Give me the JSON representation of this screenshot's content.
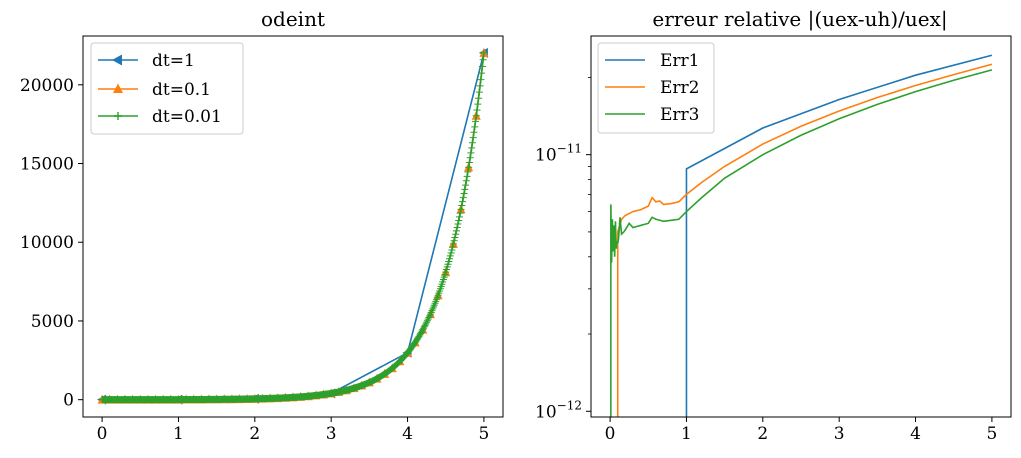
{
  "chart_data": [
    {
      "type": "line",
      "title": "odeint",
      "xlabel": "",
      "ylabel": "",
      "xlim": [
        -0.25,
        5.25
      ],
      "ylim": [
        -1100,
        23100
      ],
      "xticks": [
        0,
        1,
        2,
        3,
        4,
        5
      ],
      "xtick_labels": [
        "0",
        "1",
        "2",
        "3",
        "4",
        "5"
      ],
      "yticks": [
        0,
        5000,
        10000,
        15000,
        20000
      ],
      "ytick_labels": [
        "0",
        "5000",
        "10000",
        "15000",
        "20000"
      ],
      "grid": false,
      "legend_position": "top-left",
      "series": [
        {
          "name": "dt=1",
          "color": "#1f77b4",
          "marker": "triangle-left",
          "step": 1,
          "x": [
            0,
            1,
            2,
            3,
            4,
            5
          ],
          "y": [
            1,
            7.4,
            54.6,
            403.4,
            2981,
            22026
          ]
        },
        {
          "name": "dt=0.1",
          "color": "#ff7f0e",
          "marker": "triangle-up",
          "step": 0.1,
          "x": [
            0,
            5
          ],
          "y": [
            1,
            22026
          ],
          "function": "exp(2x)",
          "points": 51
        },
        {
          "name": "dt=0.01",
          "color": "#2ca02c",
          "marker": "plus",
          "step": 0.01,
          "x": [
            0,
            5
          ],
          "y": [
            1,
            22026
          ],
          "function": "exp(2x)",
          "points": 501
        }
      ]
    },
    {
      "type": "line",
      "title": "erreur relative |(uex-uh)/uex|",
      "xlabel": "",
      "ylabel": "",
      "yscale": "log",
      "xlim": [
        -0.25,
        5.25
      ],
      "ylim": [
        9.5e-13,
        2.9e-11
      ],
      "xticks": [
        0,
        1,
        2,
        3,
        4,
        5
      ],
      "xtick_labels": [
        "0",
        "1",
        "2",
        "3",
        "4",
        "5"
      ],
      "yticks": [
        1e-12,
        1e-11
      ],
      "ytick_labels": [
        {
          "base": "10",
          "exp": "−12"
        },
        {
          "base": "10",
          "exp": "−11"
        }
      ],
      "grid": false,
      "legend_position": "top-left",
      "series": [
        {
          "name": "Err1",
          "color": "#1f77b4",
          "x": [
            0,
            1,
            1,
            2,
            3,
            4,
            5
          ],
          "y": [
            0,
            0,
            8.8e-12,
            1.27e-11,
            1.64e-11,
            2.04e-11,
            2.44e-11
          ]
        },
        {
          "name": "Err2",
          "color": "#ff7f0e",
          "x": [
            0,
            0.1,
            0.1,
            0.15,
            0.2,
            0.3,
            0.4,
            0.5,
            0.55,
            0.6,
            0.65,
            0.7,
            0.8,
            0.9,
            1.0,
            1.2,
            1.5,
            2.0,
            2.5,
            3.0,
            3.5,
            4.0,
            4.5,
            5.0
          ],
          "y": [
            0,
            0,
            5e-12,
            5.6e-12,
            5.8e-12,
            6e-12,
            6.1e-12,
            6.3e-12,
            6.8e-12,
            6.55e-12,
            6.6e-12,
            6.4e-12,
            6.45e-12,
            6.55e-12,
            7e-12,
            7.8e-12,
            9e-12,
            1.1e-11,
            1.29e-11,
            1.48e-11,
            1.67e-11,
            1.86e-11,
            2.05e-11,
            2.25e-11
          ]
        },
        {
          "name": "Err3",
          "color": "#2ca02c",
          "x": [
            0,
            0.01,
            0.01,
            0.02,
            0.03,
            0.04,
            0.05,
            0.06,
            0.07,
            0.08,
            0.09,
            0.1,
            0.11,
            0.12,
            0.13,
            0.15,
            0.18,
            0.2,
            0.25,
            0.3,
            0.35,
            0.4,
            0.45,
            0.5,
            0.55,
            0.6,
            0.65,
            0.7,
            0.8,
            0.9,
            1.0,
            1.2,
            1.5,
            2.0,
            2.5,
            3.0,
            3.5,
            4.0,
            4.5,
            5.0
          ],
          "y": [
            0,
            0,
            6.4e-12,
            3.8e-12,
            5.6e-12,
            4.2e-12,
            5.3e-12,
            4e-12,
            5.5e-12,
            4.3e-12,
            4.6e-12,
            4.5e-12,
            4.7e-12,
            5.1e-12,
            5.7e-12,
            4.9e-12,
            5e-12,
            5.1e-12,
            5.4e-12,
            5.2e-12,
            5.25e-12,
            5.3e-12,
            5.35e-12,
            5.4e-12,
            5.7e-12,
            5.6e-12,
            5.55e-12,
            5.5e-12,
            5.55e-12,
            5.6e-12,
            6e-12,
            6.8e-12,
            8.1e-12,
            1e-11,
            1.19e-11,
            1.38e-11,
            1.57e-11,
            1.76e-11,
            1.95e-11,
            2.14e-11
          ]
        }
      ]
    }
  ]
}
